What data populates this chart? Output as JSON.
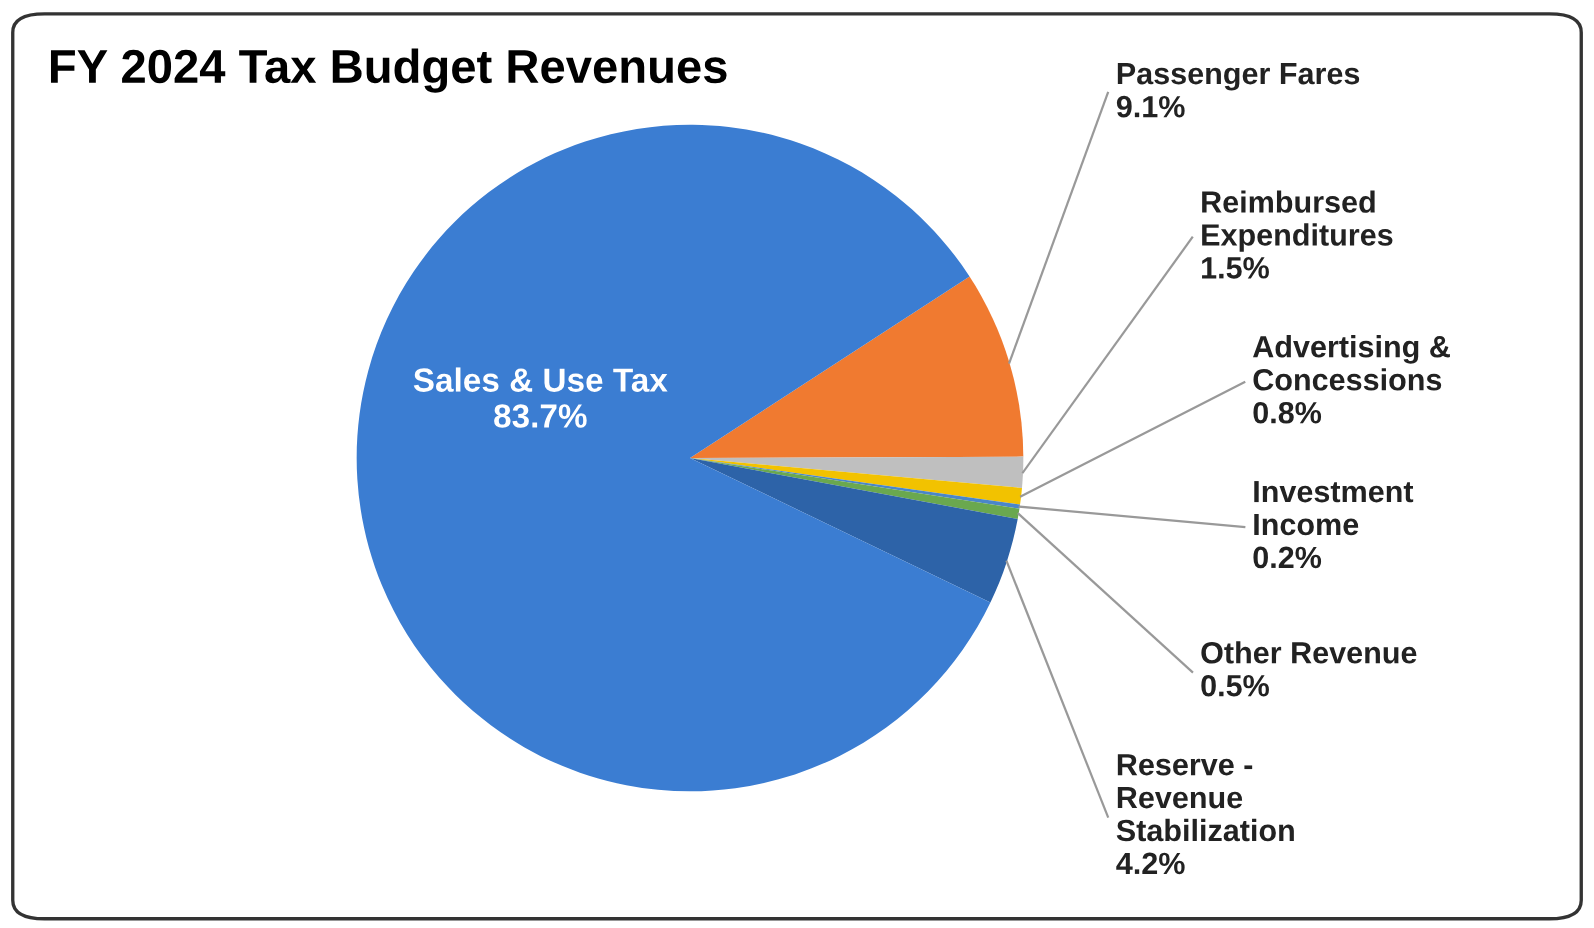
{
  "chart_data": {
    "type": "pie",
    "title": "FY 2024 Tax Budget Revenues",
    "categories": [
      "Passenger Fares",
      "Reimbursed\nExpenditures",
      "Advertising &\nConcessions",
      "Investment\nIncome",
      "Other Revenue",
      "Reserve -\nRevenue\nStabilization",
      "Sales & Use Tax"
    ],
    "values": [
      9.1,
      1.5,
      0.8,
      0.2,
      0.5,
      4.2,
      83.7
    ],
    "colors": [
      "#f07a30",
      "#bfbfbf",
      "#f2c200",
      "#4a86c8",
      "#6aa84f",
      "#2d63a8",
      "#3b7dd2"
    ],
    "value_labels": [
      "9.1%",
      "1.5%",
      "0.8%",
      "0.2%",
      "0.5%",
      "4.2%",
      "83.7%"
    ]
  }
}
